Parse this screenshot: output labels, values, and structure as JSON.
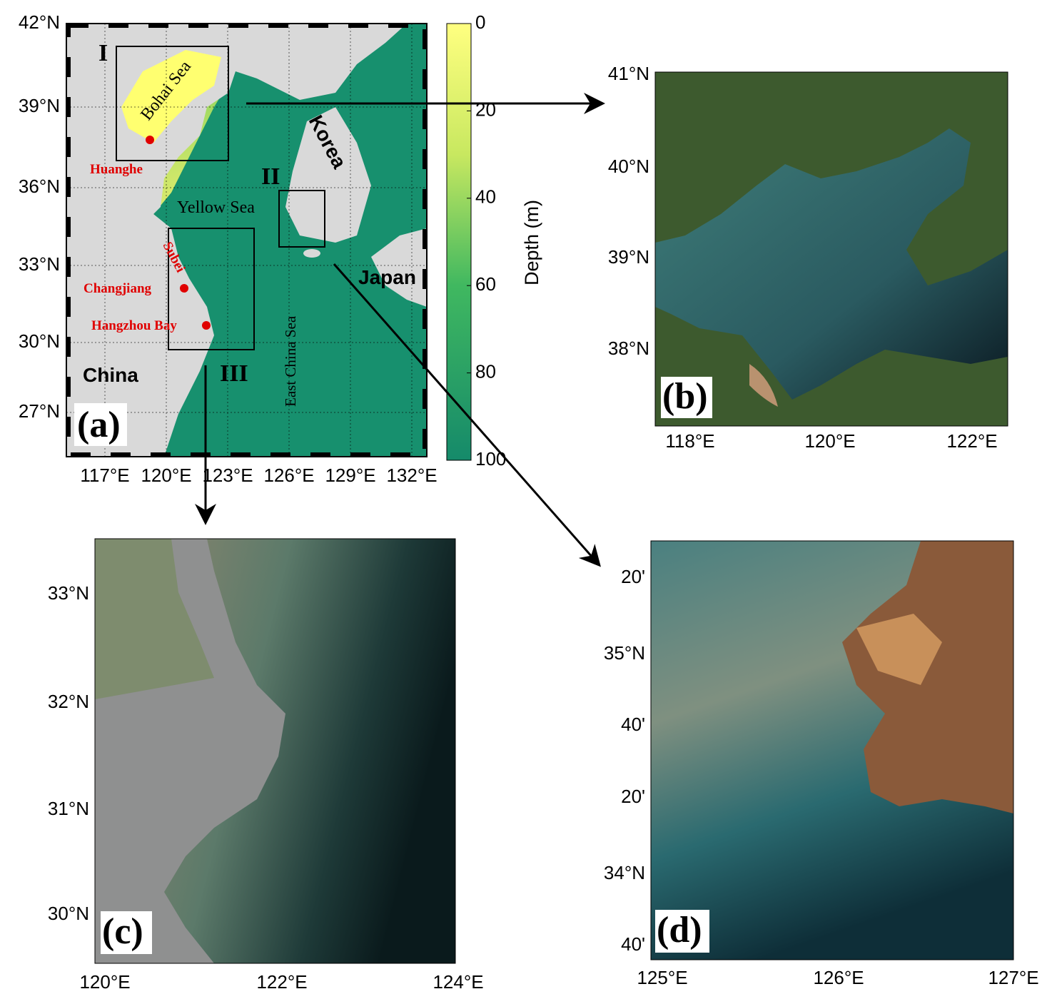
{
  "panels": {
    "a": {
      "label": "(a)",
      "lat_ticks": [
        "42°N",
        "39°N",
        "36°N",
        "33°N",
        "30°N",
        "27°N"
      ],
      "lon_ticks": [
        "117°E",
        "120°E",
        "123°E",
        "126°E",
        "129°E",
        "132°E"
      ],
      "regions": [
        "I",
        "II",
        "III"
      ],
      "seas": [
        "Bohai Sea",
        "Yellow Sea",
        "East China Sea"
      ],
      "countries": [
        "Korea",
        "Japan",
        "China"
      ],
      "places": [
        "Huanghe",
        "Subei",
        "Changjiang",
        "Hangzhou Bay"
      ],
      "colorbar": {
        "title": "Depth (m)",
        "ticks": [
          0,
          20,
          40,
          60,
          80,
          100
        ]
      }
    },
    "b": {
      "label": "(b)",
      "lat_ticks": [
        "41°N",
        "40°N",
        "39°N",
        "38°N"
      ],
      "lon_ticks": [
        "118°E",
        "120°E",
        "122°E"
      ]
    },
    "c": {
      "label": "(c)",
      "lat_ticks": [
        "33°N",
        "32°N",
        "31°N",
        "30°N"
      ],
      "lon_ticks": [
        "120°E",
        "122°E",
        "124°E"
      ]
    },
    "d": {
      "label": "(d)",
      "lat_ticks": [
        "20'",
        "35°N",
        "40'",
        "20'",
        "34°N",
        "40'"
      ],
      "lon_ticks": [
        "125°E",
        "126°E",
        "127°E"
      ]
    }
  }
}
